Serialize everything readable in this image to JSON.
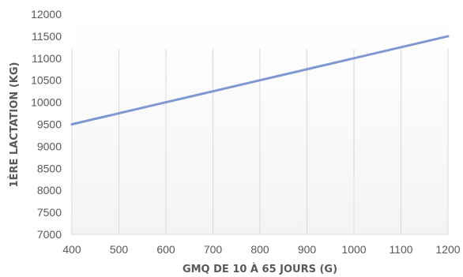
{
  "chart_data": {
    "type": "line",
    "title": "",
    "xlabel": "GMQ DE 10 À 65 JOURS (G)",
    "ylabel": "1ÈRE LACTATION (KG)",
    "x": [
      400,
      500,
      600,
      700,
      800,
      900,
      1000,
      1100,
      1200
    ],
    "series": [
      {
        "values": [
          9500,
          9750,
          10000,
          10250,
          10500,
          10750,
          11000,
          11250,
          11500
        ]
      }
    ],
    "xlim": [
      400,
      1200
    ],
    "ylim": [
      7000,
      12000
    ],
    "xticks": [
      "400",
      "500",
      "600",
      "700",
      "800",
      "900",
      "1000",
      "1100",
      "1200"
    ],
    "yticks": [
      "7000",
      "7500",
      "8000",
      "8500",
      "9000",
      "9500",
      "10000",
      "10500",
      "11000",
      "11500",
      "12000"
    ],
    "grid": "vertical",
    "colors": {
      "line": "#7f98cf",
      "grid": "#d9d9d9",
      "text": "#595959"
    }
  }
}
